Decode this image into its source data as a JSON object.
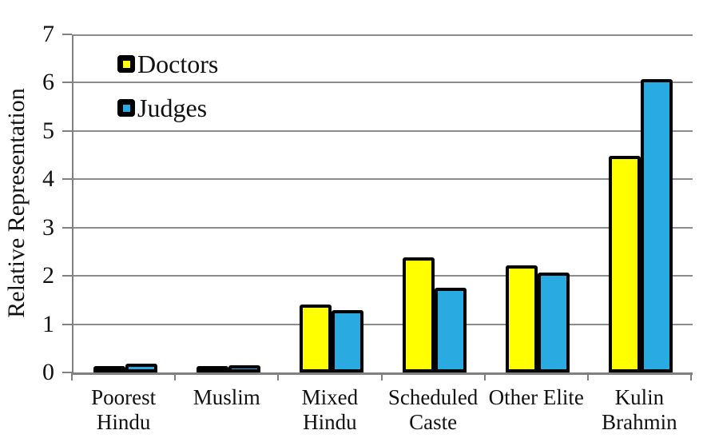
{
  "chart_data": {
    "type": "bar",
    "ylabel": "Relative Representation",
    "xlabel": "",
    "ylim": [
      0,
      7
    ],
    "yticks": [
      0,
      1,
      2,
      3,
      4,
      5,
      6,
      7
    ],
    "grid": true,
    "legend_position": "top-left-inside",
    "categories": [
      "Poorest Hindu",
      "Muslim",
      "Mixed Hindu",
      "Scheduled Caste",
      "Other Elite",
      "Kulin Brahmin"
    ],
    "category_lines": [
      [
        "Poorest",
        "Hindu"
      ],
      [
        "Muslim"
      ],
      [
        "Mixed",
        "Hindu"
      ],
      [
        "Scheduled",
        "Caste"
      ],
      [
        "Other Elite"
      ],
      [
        "Kulin",
        "Brahmin"
      ]
    ],
    "series": [
      {
        "name": "Doctors",
        "color": "#FFFF00",
        "values": [
          0.08,
          0.12,
          1.4,
          2.38,
          2.22,
          4.48
        ]
      },
      {
        "name": "Judges",
        "color": "#29ABE2",
        "values": [
          0.18,
          0.15,
          1.29,
          1.76,
          2.07,
          6.08
        ]
      }
    ],
    "style": {
      "bar_outline": "#000000",
      "gridline_color": "#8C8C8C",
      "axis_color": "#808080",
      "text_color": "#111111",
      "background": "#FFFFFF"
    }
  }
}
